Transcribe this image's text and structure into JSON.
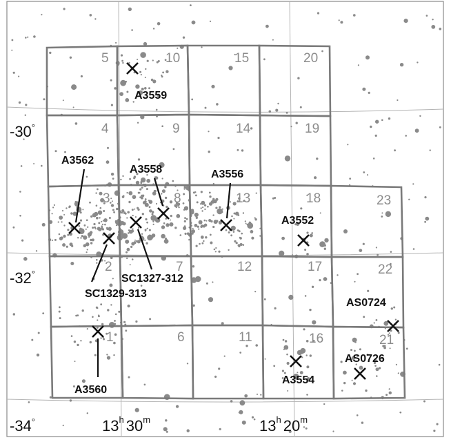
{
  "dec_labels": {
    "dec_m30": {
      "deg": "-30",
      "sym": "°"
    },
    "dec_m32": {
      "deg": "-32",
      "sym": "°"
    },
    "dec_m34": {
      "deg": "-34",
      "sym": "°"
    }
  },
  "ra_labels": {
    "ra_1330": {
      "h": "13",
      "hs": "h",
      "m": "30",
      "ms": "m"
    },
    "ra_1320": {
      "h": "13",
      "hs": "h",
      "m": "20",
      "ms": "m"
    }
  },
  "tiles": [
    "1",
    "2",
    "3",
    "4",
    "5",
    "6",
    "7",
    "8",
    "9",
    "10",
    "11",
    "12",
    "13",
    "14",
    "15",
    "16",
    "17",
    "18",
    "19",
    "20",
    "21",
    "22",
    "23"
  ],
  "clusters": [
    {
      "id": "A3559",
      "name": "A3559"
    },
    {
      "id": "A3562",
      "name": "A3562"
    },
    {
      "id": "A3558",
      "name": "A3558"
    },
    {
      "id": "A3556",
      "name": "A3556"
    },
    {
      "id": "A3552",
      "name": "A3552"
    },
    {
      "id": "SC1327-312",
      "name": "SC1327-312"
    },
    {
      "id": "SC1329-313",
      "name": "SC1329-313"
    },
    {
      "id": "A3560",
      "name": "A3560"
    },
    {
      "id": "A3554",
      "name": "A3554"
    },
    {
      "id": "AS0724",
      "name": "AS0724"
    },
    {
      "id": "AS0726",
      "name": "AS0726"
    }
  ]
}
